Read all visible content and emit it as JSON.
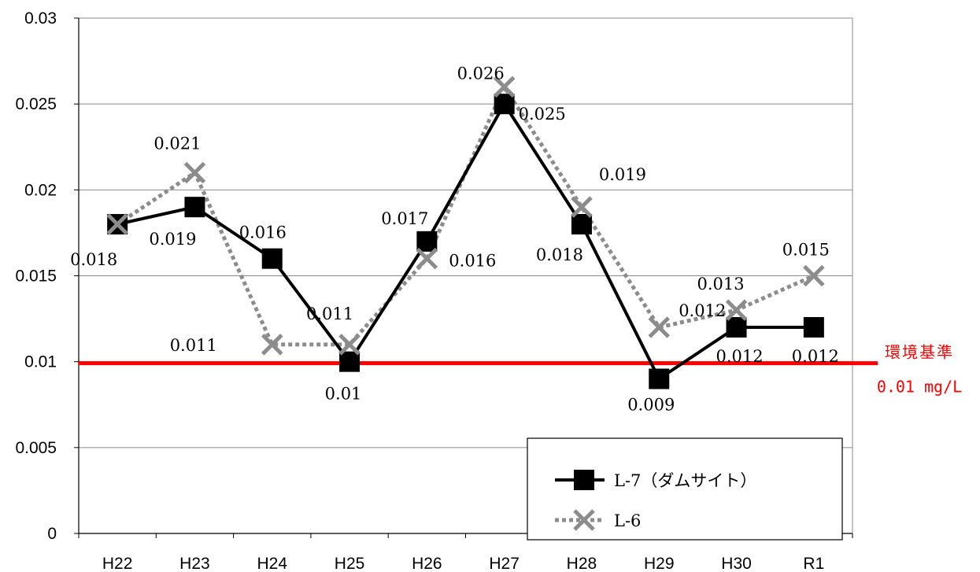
{
  "chart_data": {
    "type": "line",
    "categories": [
      "H22",
      "H23",
      "H24",
      "H25",
      "H26",
      "H27",
      "H28",
      "H29",
      "H30",
      "R1"
    ],
    "ylim": [
      0,
      0.03
    ],
    "yticks": [
      "0",
      "0.005",
      "0.01",
      "0.015",
      "0.02",
      "0.025",
      "0.03"
    ],
    "grid": true,
    "legend_position": "bottom-right",
    "series": [
      {
        "name": "L-7（ダムサイト）",
        "values": [
          0.018,
          0.019,
          0.016,
          0.01,
          0.017,
          0.025,
          0.018,
          0.009,
          0.012,
          0.012
        ],
        "labels": [
          "0.018",
          "0.019",
          "0.016",
          "0.01",
          "0.017",
          "0.025",
          "0.018",
          "0.009",
          "0.012",
          "0.012"
        ],
        "color": "#000000",
        "marker": "square",
        "line": "solid"
      },
      {
        "name": "L-6",
        "values": [
          0.018,
          0.021,
          0.011,
          0.011,
          0.016,
          0.026,
          0.019,
          0.012,
          0.013,
          0.015
        ],
        "labels": [
          "",
          "0.021",
          "0.011",
          "0.011",
          "0.016",
          "0.026",
          "0.019",
          "0.012",
          "0.013",
          "0.015"
        ],
        "color": "#8c8c8c",
        "marker": "x",
        "line": "dotted"
      }
    ],
    "reference_line": {
      "value": 0.01,
      "color": "#ff0000",
      "label_line1": "環境基準",
      "label_line2": "0.01 mg/L"
    }
  }
}
